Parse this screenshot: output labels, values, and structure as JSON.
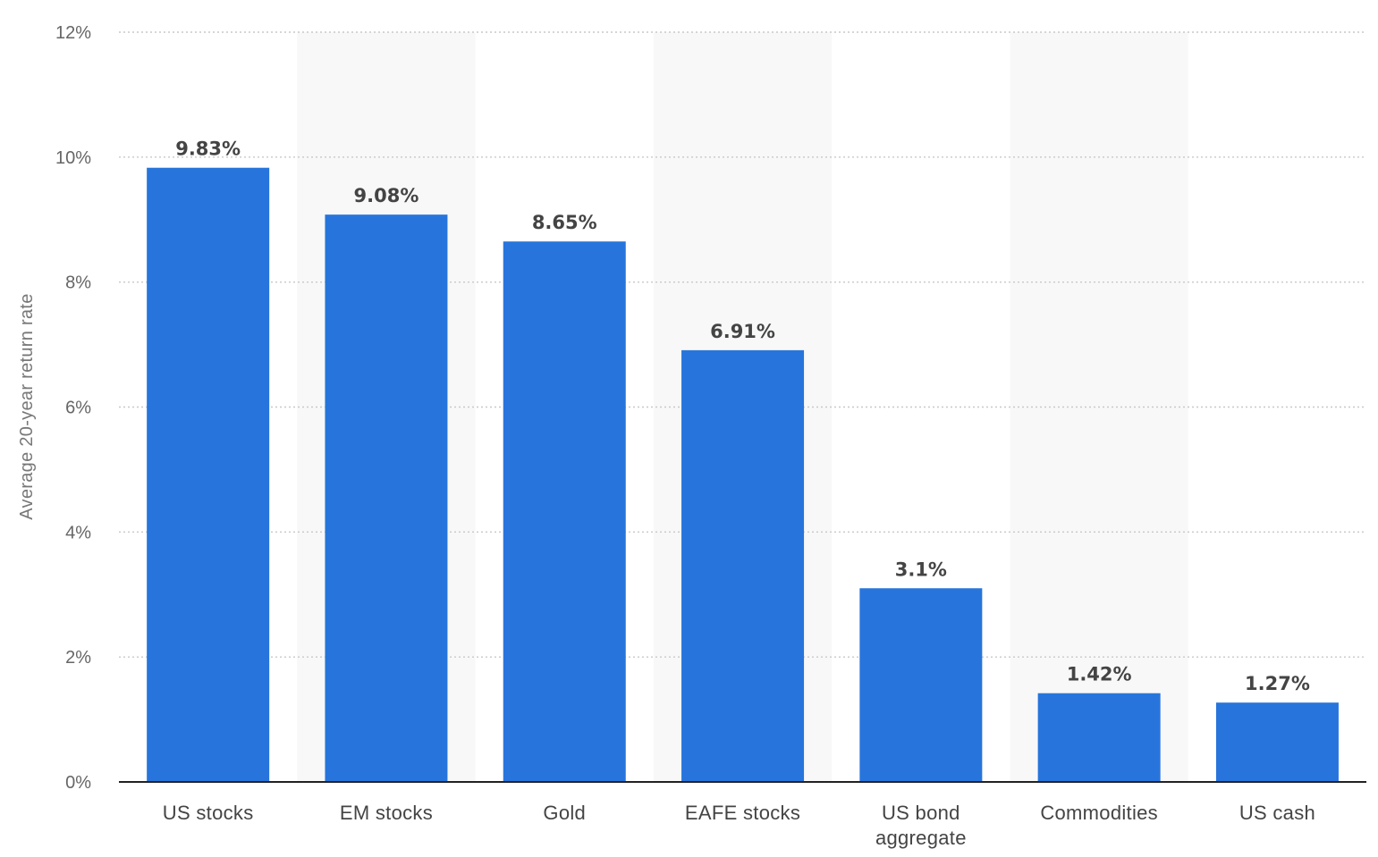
{
  "chart_data": {
    "type": "bar",
    "ylabel": "Average 20-year return rate",
    "xlabel": "",
    "ylim": [
      0,
      12
    ],
    "ytick_values": [
      0,
      2,
      4,
      6,
      8,
      10,
      12
    ],
    "yticks": [
      "0%",
      "2%",
      "4%",
      "6%",
      "8%",
      "10%",
      "12%"
    ],
    "grid": true,
    "categories": [
      [
        "US stocks"
      ],
      [
        "EM stocks"
      ],
      [
        "Gold"
      ],
      [
        "EAFE stocks"
      ],
      [
        "US bond",
        "aggregate"
      ],
      [
        "Commodities"
      ],
      [
        "US cash"
      ]
    ],
    "values": [
      9.83,
      9.08,
      8.65,
      6.91,
      3.1,
      1.42,
      1.27
    ],
    "value_labels": [
      "9.83%",
      "9.08%",
      "8.65%",
      "6.91%",
      "3.1%",
      "1.42%",
      "1.27%"
    ],
    "bar_color": "#2775dc",
    "band_color": "#f8f8f8"
  }
}
